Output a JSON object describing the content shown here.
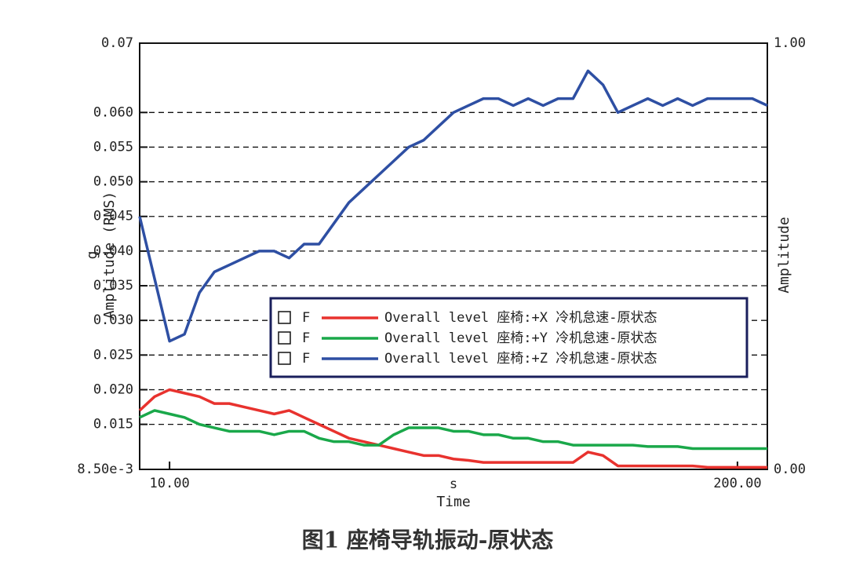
{
  "chart_data": {
    "type": "line",
    "title": "图1 座椅导轨振动-原状态",
    "x_label": "Time",
    "x_unit": "s",
    "y_label": "Amplitude (RMS)",
    "y_unit": "g",
    "y2_label": "Amplitude",
    "legend_flag": "F",
    "x": [
      0,
      5,
      10,
      15,
      20,
      25,
      30,
      35,
      40,
      45,
      50,
      55,
      60,
      65,
      70,
      75,
      80,
      85,
      90,
      95,
      100,
      105,
      110,
      115,
      120,
      125,
      130,
      135,
      140,
      145,
      150,
      155,
      160,
      165,
      170,
      175,
      180,
      185,
      190,
      195,
      200,
      205,
      210
    ],
    "xlim": [
      0,
      210
    ],
    "xticks": [
      {
        "value": 10,
        "label": "10.00"
      },
      {
        "value": 200,
        "label": "200.00"
      }
    ],
    "ylim": [
      0.0085,
      0.07
    ],
    "yticks": [
      {
        "value": 0.0085,
        "label": "8.50e-3"
      },
      0.015,
      {
        "value": 0.02,
        "label": "0.020"
      },
      0.025,
      {
        "value": 0.03,
        "label": "0.030"
      },
      0.035,
      {
        "value": 0.04,
        "label": "0.040"
      },
      0.045,
      {
        "value": 0.05,
        "label": "0.050"
      },
      0.055,
      {
        "value": 0.06,
        "label": "0.060"
      },
      0.07
    ],
    "y2lim": [
      0,
      1
    ],
    "y2ticks": [
      {
        "value": 0,
        "label": "0.00"
      },
      {
        "value": 1,
        "label": "1.00"
      }
    ],
    "grid": true,
    "series": [
      {
        "name": "Overall level 座椅:+X 冷机怠速-原状态",
        "color": "#e8322e",
        "values": [
          0.017,
          0.019,
          0.02,
          0.0195,
          0.019,
          0.018,
          0.018,
          0.0175,
          0.017,
          0.0165,
          0.017,
          0.016,
          0.015,
          0.014,
          0.013,
          0.0125,
          0.012,
          0.0115,
          0.011,
          0.0105,
          0.0105,
          0.01,
          0.0098,
          0.0095,
          0.0095,
          0.0095,
          0.0095,
          0.0095,
          0.0095,
          0.0095,
          0.011,
          0.0105,
          0.009,
          0.009,
          0.009,
          0.009,
          0.009,
          0.009,
          0.0088,
          0.0088,
          0.0088,
          0.0088,
          0.0088
        ]
      },
      {
        "name": "Overall level 座椅:+Y 冷机怠速-原状态",
        "color": "#1aa84a",
        "values": [
          0.016,
          0.017,
          0.0165,
          0.016,
          0.015,
          0.0145,
          0.014,
          0.014,
          0.014,
          0.0135,
          0.014,
          0.014,
          0.013,
          0.0125,
          0.0125,
          0.012,
          0.012,
          0.0135,
          0.0145,
          0.0145,
          0.0145,
          0.014,
          0.014,
          0.0135,
          0.0135,
          0.013,
          0.013,
          0.0125,
          0.0125,
          0.012,
          0.012,
          0.012,
          0.012,
          0.012,
          0.0118,
          0.0118,
          0.0118,
          0.0115,
          0.0115,
          0.0115,
          0.0115,
          0.0115,
          0.0115
        ]
      },
      {
        "name": "Overall level 座椅:+Z 冷机怠速-原状态",
        "color": "#2e4fa3",
        "values": [
          0.045,
          0.036,
          0.027,
          0.028,
          0.034,
          0.037,
          0.038,
          0.039,
          0.04,
          0.04,
          0.039,
          0.041,
          0.041,
          0.044,
          0.047,
          0.049,
          0.051,
          0.053,
          0.055,
          0.056,
          0.058,
          0.06,
          0.061,
          0.062,
          0.062,
          0.061,
          0.062,
          0.061,
          0.062,
          0.062,
          0.066,
          0.064,
          0.06,
          0.061,
          0.062,
          0.061,
          0.062,
          0.061,
          0.062,
          0.062,
          0.062,
          0.062,
          0.061
        ]
      }
    ]
  }
}
